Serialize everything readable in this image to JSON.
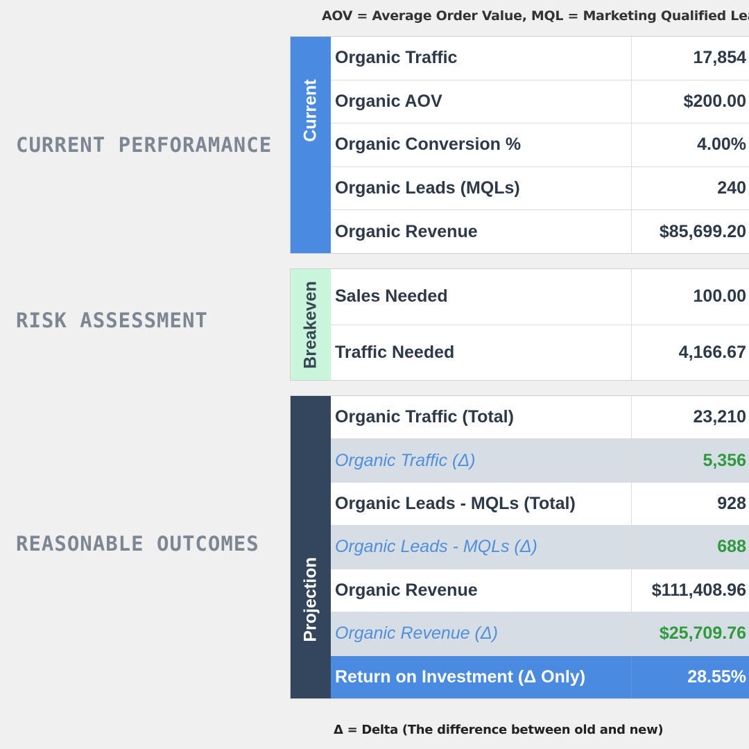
{
  "top_note": "AOV = Average Order Value, MQL = Marketing Qualified Lead",
  "bottom_note": "Δ = Delta (The difference between old and new)",
  "sections": {
    "current_label": "CURRENT PERFORAMANCE",
    "risk_label": "RISK ASSESSMENT",
    "outcomes_label": "REASONABLE OUTCOMES"
  },
  "current": {
    "side_label": "Current",
    "rows": [
      {
        "label": "Organic Traffic",
        "value": "17,854"
      },
      {
        "label": "Organic AOV",
        "value": "$200.00"
      },
      {
        "label": "Organic Conversion %",
        "value": "4.00%"
      },
      {
        "label": "Organic Leads (MQLs)",
        "value": "240"
      },
      {
        "label": "Organic Revenue",
        "value": "$85,699.20"
      }
    ]
  },
  "breakeven": {
    "side_label": "Breakeven",
    "rows": [
      {
        "label": "Sales Needed",
        "value": "100.00"
      },
      {
        "label": "Traffic Needed",
        "value": "4,166.67"
      }
    ]
  },
  "projection": {
    "side_label": "Projection",
    "rows": [
      {
        "label": "Organic Traffic (Total)",
        "value": "23,210"
      },
      {
        "label": "Organic Traffic (Δ)",
        "value": "5,356"
      },
      {
        "label": "Organic Leads - MQLs (Total)",
        "value": "928"
      },
      {
        "label": "Organic Leads - MQLs (Δ)",
        "value": "688"
      },
      {
        "label": "Organic Revenue",
        "value": "$111,408.96"
      },
      {
        "label": "Organic Revenue (Δ)",
        "value": "$25,709.76"
      },
      {
        "label": "Return on Investment (Δ Only)",
        "value": "28.55%"
      }
    ]
  },
  "colors": {
    "current": "#4a8ae0",
    "breakeven": "#c9f5dd",
    "projection": "#34465d",
    "delta_text": "#4f8fdc",
    "delta_value": "#2f9a3c"
  }
}
